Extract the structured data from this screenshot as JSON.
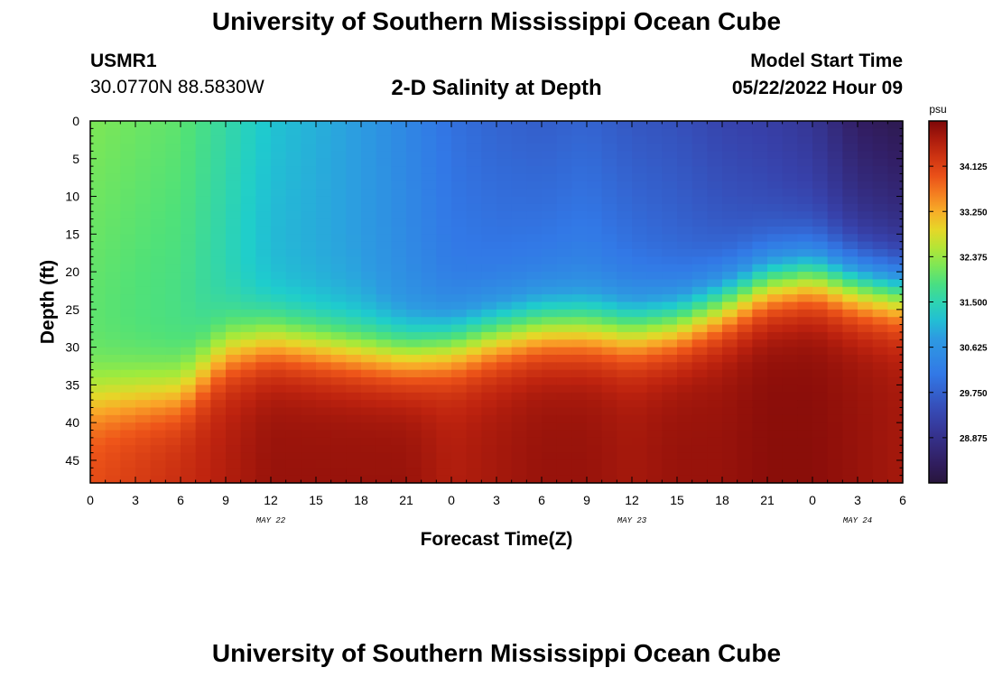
{
  "header": {
    "title": "University of Southern Mississippi Ocean Cube",
    "station_id": "USMR1",
    "station_coords": "30.0770N  88.5830W",
    "plot_title": "2-D Salinity at Depth",
    "start_label": "Model Start Time",
    "start_value": "05/22/2022 Hour 09"
  },
  "footer": {
    "title": "University of Southern Mississippi Ocean Cube"
  },
  "chart_data": {
    "type": "heatmap",
    "title": "2-D Salinity at Depth",
    "xlabel": "Forecast Time(Z)",
    "ylabel": "Depth (ft)",
    "x_unit": "hours since 05/22 00Z",
    "xlim": [
      0,
      54
    ],
    "ylim": [
      0,
      48
    ],
    "y_inverted": true,
    "x_ticks": [
      0,
      3,
      6,
      9,
      12,
      15,
      18,
      21,
      24,
      27,
      30,
      33,
      36,
      39,
      42,
      45,
      48,
      51,
      54
    ],
    "x_tick_labels": [
      "0",
      "3",
      "6",
      "9",
      "12",
      "15",
      "18",
      "21",
      "0",
      "3",
      "6",
      "9",
      "12",
      "15",
      "18",
      "21",
      "0",
      "3",
      "6"
    ],
    "y_ticks": [
      0,
      5,
      10,
      15,
      20,
      25,
      30,
      35,
      40,
      45
    ],
    "y_tick_labels": [
      "0",
      "5",
      "10",
      "15",
      "20",
      "25",
      "30",
      "35",
      "40",
      "45"
    ],
    "date_labels": [
      {
        "text": "MAY 22",
        "x": 12
      },
      {
        "text": "MAY 23",
        "x": 36
      },
      {
        "text": "MAY 24",
        "x": 51
      }
    ],
    "colorbar": {
      "unit": "psu",
      "range": [
        28.0,
        35.0
      ],
      "tick_values": [
        28.875,
        29.75,
        30.625,
        31.5,
        32.375,
        33.25,
        34.125
      ],
      "tick_labels": [
        "28.875",
        "29.750",
        "30.625",
        "31.500",
        "32.375",
        "33.250",
        "34.125"
      ]
    },
    "grid": {
      "cols": 54,
      "rows": 48,
      "x_step": 1,
      "y_step": 1
    },
    "field_model": {
      "time_x": [
        0,
        6,
        9,
        12,
        18,
        21,
        24,
        27,
        30,
        33,
        36,
        39,
        42,
        45,
        48,
        51,
        54
      ],
      "halocline_depth": [
        37,
        36,
        30.5,
        29,
        30.5,
        31,
        30,
        28.5,
        27.5,
        27.5,
        28,
        27,
        24.5,
        21.5,
        20.5,
        22,
        23
      ],
      "surface_salinity": [
        32.2,
        32.0,
        31.6,
        31.2,
        30.8,
        30.4,
        30.0,
        29.8,
        29.7,
        29.8,
        29.6,
        29.5,
        29.3,
        29.2,
        29.0,
        28.4,
        28.2
      ],
      "mid_salinity": [
        31.9,
        31.7,
        31.4,
        31.0,
        30.8,
        30.5,
        30.2,
        30.2,
        30.3,
        30.4,
        30.2,
        30.0,
        29.8,
        29.6,
        29.5,
        29.2,
        29.1
      ],
      "bottom_salinity": [
        34.0,
        34.4,
        34.6,
        34.8,
        34.8,
        34.8,
        34.6,
        34.7,
        34.8,
        34.8,
        34.7,
        34.8,
        34.8,
        34.9,
        34.9,
        34.8,
        34.7
      ]
    }
  }
}
